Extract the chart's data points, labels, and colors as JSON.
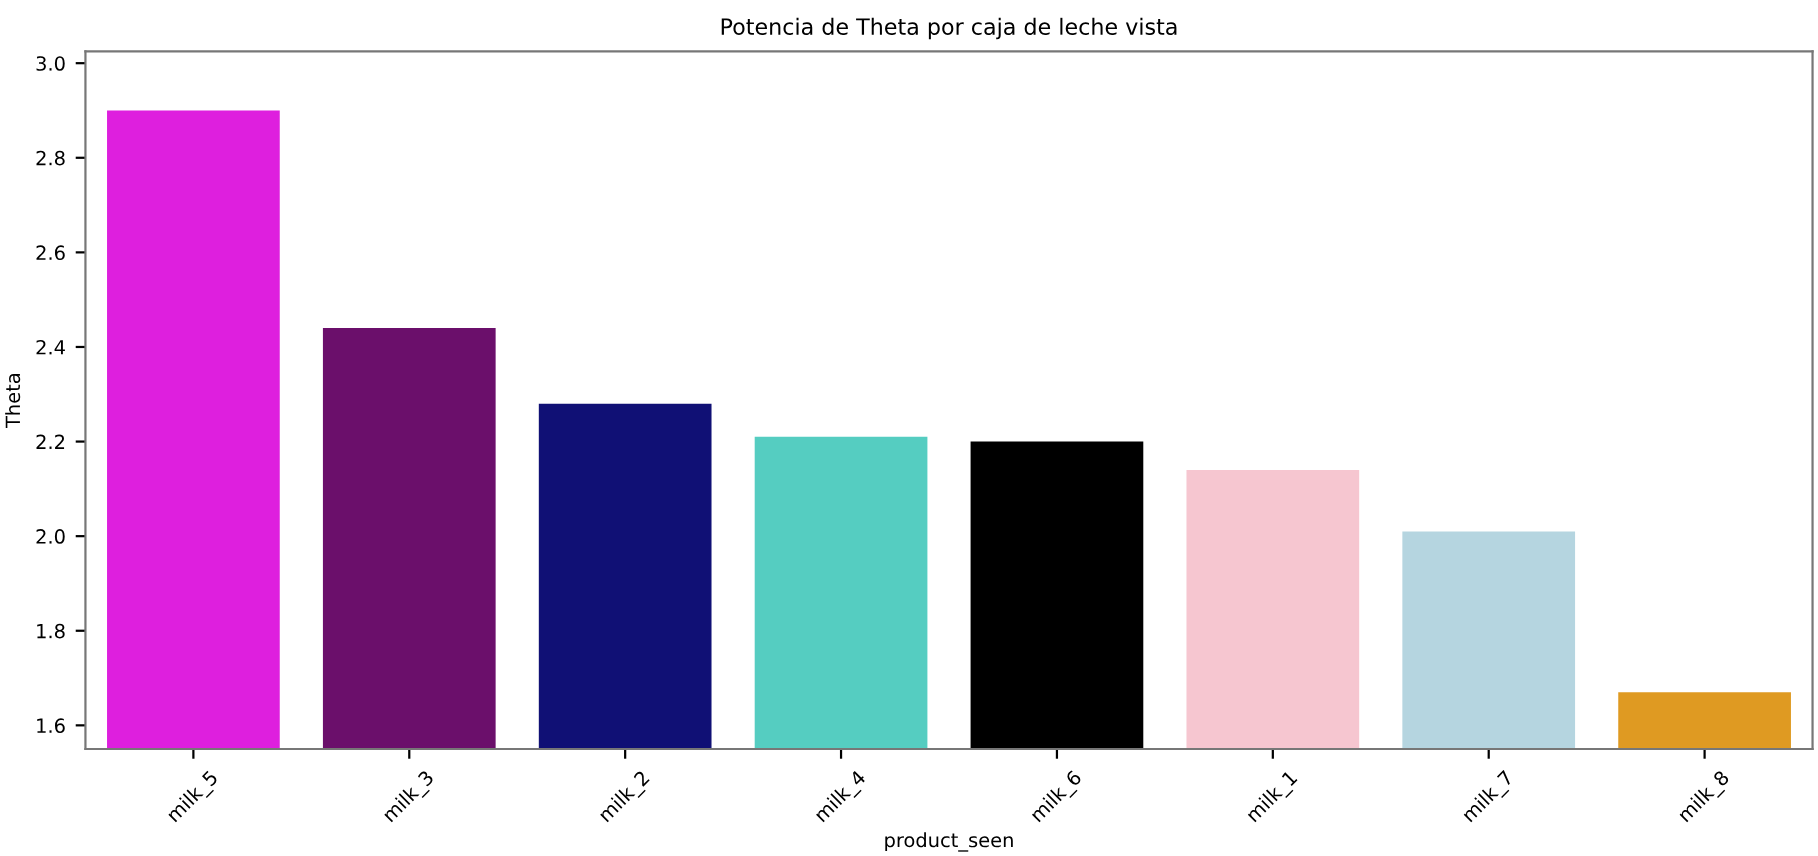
{
  "chart_data": {
    "type": "bar",
    "title": "Potencia de Theta por caja de leche vista",
    "xlabel": "product_seen",
    "ylabel": "Theta",
    "categories": [
      "milk_5",
      "milk_3",
      "milk_2",
      "milk_4",
      "milk_6",
      "milk_1",
      "milk_7",
      "milk_8"
    ],
    "values": [
      2.9,
      2.44,
      2.28,
      2.21,
      2.2,
      2.14,
      2.01,
      1.67
    ],
    "colors": [
      "#de1fde",
      "#6b0f6b",
      "#101075",
      "#55cdc1",
      "#000000",
      "#f6c6d0",
      "#b5d5e0",
      "#df9a22"
    ],
    "ylim": [
      1.55,
      3.025
    ],
    "yticks": [
      {
        "value": 1.6,
        "label": "1.6"
      },
      {
        "value": 1.8,
        "label": "1.8"
      },
      {
        "value": 2.0,
        "label": "2.0"
      },
      {
        "value": 2.2,
        "label": "2.2"
      },
      {
        "value": 2.4,
        "label": "2.4"
      },
      {
        "value": 2.6,
        "label": "2.6"
      },
      {
        "value": 2.8,
        "label": "2.8"
      },
      {
        "value": 3.0,
        "label": "3.0"
      }
    ],
    "grid": false
  }
}
